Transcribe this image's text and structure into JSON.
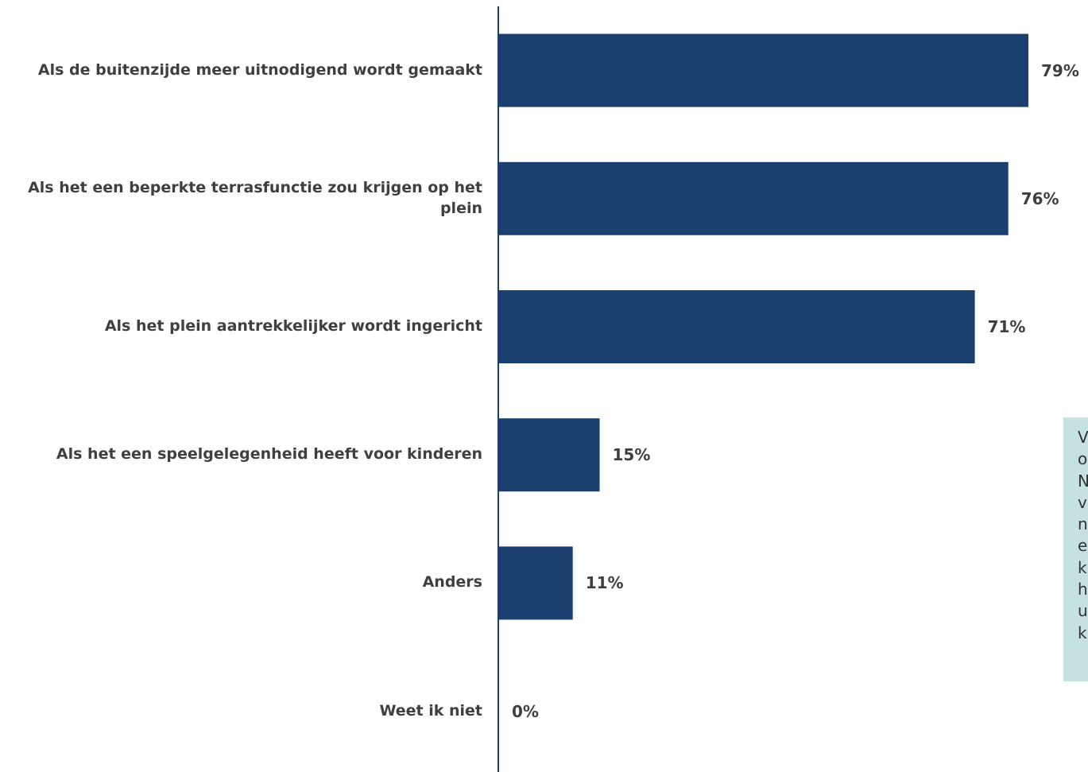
{
  "chart_data": {
    "type": "bar",
    "orientation": "horizontal",
    "categories": [
      "Als de buitenzijde meer uitnodigend wordt gemaakt",
      "Als het een beperkte terrasfunctie zou krijgen op het plein",
      "Als het plein aantrekkelijker wordt ingericht",
      "Als het een speelgelegenheid heeft voor kinderen",
      "Anders",
      "Weet ik niet"
    ],
    "values": [
      79,
      76,
      71,
      15,
      11,
      0
    ],
    "value_labels": [
      "79%",
      "76%",
      "71%",
      "15%",
      "11%",
      "0%"
    ],
    "unit": "%",
    "xlim": [
      0,
      79
    ],
    "grid": false,
    "bar_color": "#1b3f6e",
    "axis_color": "#1b3f6e"
  },
  "note": {
    "visible_letters": [
      "V",
      "o",
      "N",
      "v",
      "n",
      "e",
      "k",
      "h",
      "u",
      "k"
    ],
    "background": "#c5e2e1"
  }
}
